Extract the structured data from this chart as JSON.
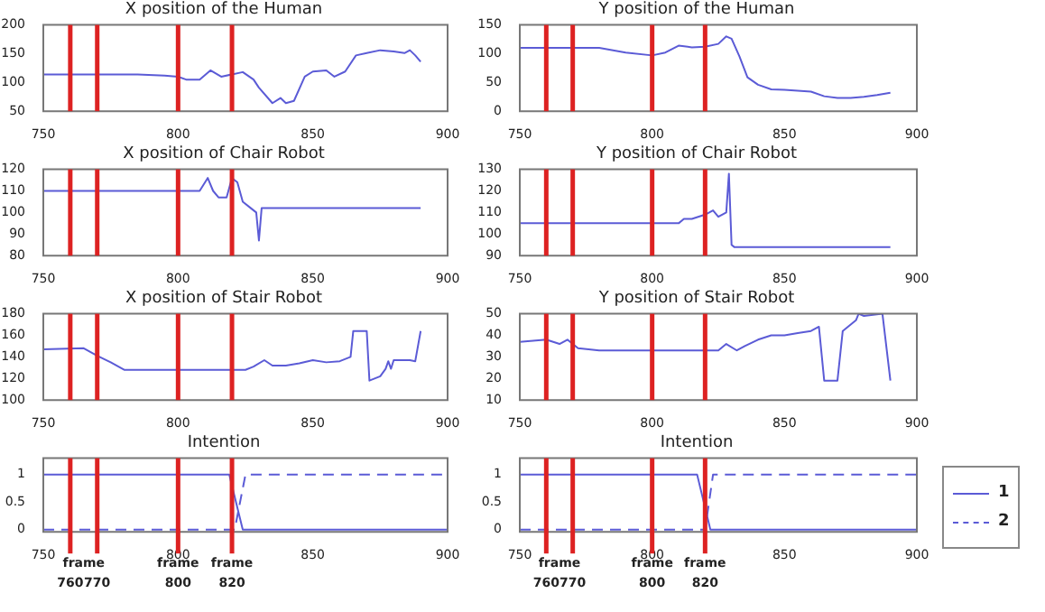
{
  "chart_data": [
    {
      "type": "line",
      "title": "X position of the Human",
      "x": [
        750,
        785,
        795,
        800,
        803,
        808,
        812,
        816,
        820,
        824,
        828,
        830,
        835,
        838,
        840,
        843,
        847,
        850,
        855,
        858,
        862,
        866,
        870,
        875,
        880,
        884,
        886,
        888,
        890
      ],
      "values": [
        114,
        114,
        112,
        110,
        105,
        105,
        121,
        110,
        114,
        118,
        105,
        91,
        64,
        73,
        64,
        68,
        110,
        119,
        121,
        110,
        119,
        147,
        151,
        156,
        154,
        151,
        156,
        147,
        136
      ],
      "color": "#5b5bd6",
      "xlim": [
        750,
        900
      ],
      "xticks": [
        750,
        800,
        850,
        900
      ],
      "ylim": [
        50,
        200
      ],
      "yticks": [
        50,
        100,
        150,
        200
      ],
      "ref_lines": [
        {
          "axis": "x",
          "value": 760,
          "color": "#dd2222"
        },
        {
          "axis": "x",
          "value": 770,
          "color": "#dd2222"
        },
        {
          "axis": "x",
          "value": 800,
          "color": "#dd2222"
        },
        {
          "axis": "x",
          "value": 820,
          "color": "#dd2222"
        }
      ]
    },
    {
      "type": "line",
      "title": "Y position of the Human",
      "x": [
        750,
        780,
        790,
        800,
        805,
        810,
        815,
        820,
        825,
        828,
        830,
        833,
        836,
        840,
        845,
        850,
        860,
        865,
        870,
        875,
        880,
        885,
        890
      ],
      "values": [
        110,
        110,
        102,
        97,
        102,
        114,
        111,
        112,
        117,
        130,
        126,
        95,
        59,
        46,
        38,
        37,
        34,
        26,
        23,
        23,
        25,
        28,
        32
      ],
      "color": "#5b5bd6",
      "xlim": [
        750,
        900
      ],
      "xticks": [
        750,
        800,
        850,
        900
      ],
      "ylim": [
        0,
        150
      ],
      "yticks": [
        0,
        50,
        100,
        150
      ],
      "ref_lines": [
        {
          "axis": "x",
          "value": 760,
          "color": "#dd2222"
        },
        {
          "axis": "x",
          "value": 770,
          "color": "#dd2222"
        },
        {
          "axis": "x",
          "value": 800,
          "color": "#dd2222"
        },
        {
          "axis": "x",
          "value": 820,
          "color": "#dd2222"
        }
      ]
    },
    {
      "type": "line",
      "title": "X position of Chair Robot",
      "x": [
        750,
        808,
        811,
        813,
        815,
        818,
        820,
        822,
        824,
        827,
        829,
        830,
        831,
        890
      ],
      "values": [
        110,
        110,
        116,
        110,
        107,
        107,
        116,
        114,
        105,
        102,
        100,
        87,
        102,
        102
      ],
      "color": "#5b5bd6",
      "xlim": [
        750,
        900
      ],
      "xticks": [
        750,
        800,
        850,
        900
      ],
      "ylim": [
        80,
        120
      ],
      "yticks": [
        80,
        90,
        100,
        110,
        120
      ],
      "ref_lines": [
        {
          "axis": "x",
          "value": 760,
          "color": "#dd2222"
        },
        {
          "axis": "x",
          "value": 770,
          "color": "#dd2222"
        },
        {
          "axis": "x",
          "value": 800,
          "color": "#dd2222"
        },
        {
          "axis": "x",
          "value": 820,
          "color": "#dd2222"
        }
      ]
    },
    {
      "type": "line",
      "title": "Y position of Chair Robot",
      "x": [
        750,
        810,
        812,
        815,
        820,
        823,
        825,
        828,
        829,
        830,
        831,
        890
      ],
      "values": [
        105,
        105,
        107,
        107,
        109,
        111,
        108,
        110,
        128,
        95,
        94,
        94
      ],
      "color": "#5b5bd6",
      "xlim": [
        750,
        900
      ],
      "xticks": [
        750,
        800,
        850,
        900
      ],
      "ylim": [
        90,
        130
      ],
      "yticks": [
        90,
        100,
        110,
        120,
        130
      ],
      "ref_lines": [
        {
          "axis": "x",
          "value": 760,
          "color": "#dd2222"
        },
        {
          "axis": "x",
          "value": 770,
          "color": "#dd2222"
        },
        {
          "axis": "x",
          "value": 800,
          "color": "#dd2222"
        },
        {
          "axis": "x",
          "value": 820,
          "color": "#dd2222"
        }
      ]
    },
    {
      "type": "line",
      "title": "X position of Stair Robot",
      "x": [
        750,
        765,
        770,
        775,
        780,
        825,
        828,
        832,
        835,
        840,
        845,
        850,
        855,
        860,
        864,
        865,
        870,
        871,
        875,
        877,
        878,
        879,
        880,
        886,
        888,
        890
      ],
      "values": [
        147,
        148,
        141,
        135,
        128,
        128,
        131,
        137,
        132,
        132,
        134,
        137,
        135,
        136,
        140,
        164,
        164,
        118,
        122,
        129,
        136,
        129,
        137,
        137,
        136,
        164
      ],
      "color": "#5b5bd6",
      "xlim": [
        750,
        900
      ],
      "xticks": [
        750,
        800,
        850,
        900
      ],
      "ylim": [
        100,
        180
      ],
      "yticks": [
        100,
        120,
        140,
        160,
        180
      ],
      "ref_lines": [
        {
          "axis": "x",
          "value": 760,
          "color": "#dd2222"
        },
        {
          "axis": "x",
          "value": 770,
          "color": "#dd2222"
        },
        {
          "axis": "x",
          "value": 800,
          "color": "#dd2222"
        },
        {
          "axis": "x",
          "value": 820,
          "color": "#dd2222"
        }
      ]
    },
    {
      "type": "line",
      "title": "Y position of Stair Robot",
      "x": [
        750,
        760,
        765,
        768,
        772,
        780,
        825,
        828,
        832,
        835,
        840,
        845,
        850,
        855,
        860,
        863,
        865,
        870,
        872,
        877,
        878,
        880,
        887,
        890
      ],
      "values": [
        37,
        38,
        36,
        38,
        34,
        33,
        33,
        36,
        33,
        35,
        38,
        40,
        40,
        41,
        42,
        44,
        19,
        19,
        42,
        47,
        50,
        49,
        50,
        19
      ],
      "color": "#5b5bd6",
      "xlim": [
        750,
        900
      ],
      "xticks": [
        750,
        800,
        850,
        900
      ],
      "ylim": [
        10,
        50
      ],
      "yticks": [
        10,
        20,
        30,
        40,
        50
      ],
      "ref_lines": [
        {
          "axis": "x",
          "value": 760,
          "color": "#dd2222"
        },
        {
          "axis": "x",
          "value": 770,
          "color": "#dd2222"
        },
        {
          "axis": "x",
          "value": 800,
          "color": "#dd2222"
        },
        {
          "axis": "x",
          "value": 820,
          "color": "#dd2222"
        }
      ]
    },
    {
      "type": "line",
      "title": "Intention",
      "series": [
        {
          "color": "#5b5bd6",
          "x": [
            750,
            819,
            824,
            900
          ],
          "values": [
            1,
            1,
            0,
            0
          ]
        },
        {
          "color": "#5b5bd6",
          "line_style": "dashed",
          "x": [
            750,
            821,
            825,
            900
          ],
          "values": [
            0,
            0,
            1,
            1
          ]
        }
      ],
      "xlim": [
        750,
        900
      ],
      "xticks": [
        750,
        800,
        850,
        900
      ],
      "ylim": [
        -0.04,
        1.3
      ],
      "yticks": [
        0,
        0.5,
        1
      ],
      "annotations": [
        "frame"
      ],
      "ref_lines": [
        {
          "axis": "x",
          "value": 760,
          "label": "760",
          "color": "#dd2222"
        },
        {
          "axis": "x",
          "value": 770,
          "label": "770",
          "color": "#dd2222"
        },
        {
          "axis": "x",
          "value": 800,
          "label": "frame 800",
          "color": "#dd2222"
        },
        {
          "axis": "x",
          "value": 820,
          "label": "frame 820",
          "color": "#dd2222"
        }
      ]
    },
    {
      "type": "line",
      "title": "Intention",
      "series": [
        {
          "name": "1",
          "color": "#5b5bd6",
          "x": [
            750,
            817,
            822,
            900
          ],
          "values": [
            1,
            1,
            0,
            0
          ]
        },
        {
          "name": "2",
          "color": "#5b5bd6",
          "line_style": "dashed",
          "x": [
            750,
            820,
            823,
            900
          ],
          "values": [
            0,
            0,
            1,
            1
          ]
        }
      ],
      "xlim": [
        750,
        900
      ],
      "xticks": [
        750,
        800,
        850,
        900
      ],
      "ylim": [
        -0.04,
        1.3
      ],
      "yticks": [
        0,
        0.5,
        1
      ],
      "legend": "right",
      "annotations": [
        "frame"
      ],
      "ref_lines": [
        {
          "axis": "x",
          "value": 760,
          "label": "760",
          "color": "#dd2222"
        },
        {
          "axis": "x",
          "value": 770,
          "label": "770",
          "color": "#dd2222"
        },
        {
          "axis": "x",
          "value": 800,
          "label": "frame 800",
          "color": "#dd2222"
        },
        {
          "axis": "x",
          "value": 820,
          "label": "frame 820",
          "color": "#dd2222"
        }
      ]
    }
  ]
}
